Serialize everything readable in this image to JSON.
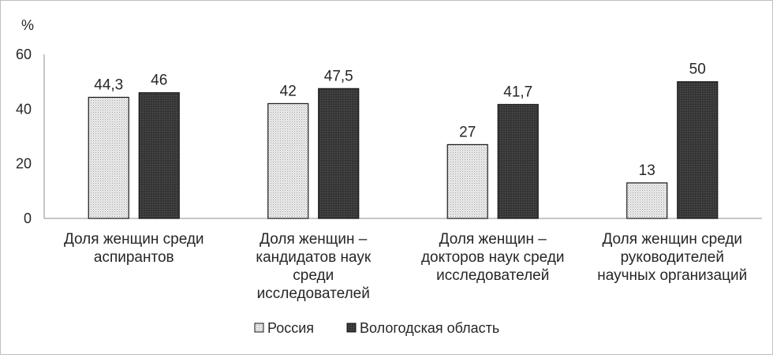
{
  "chart_data": {
    "type": "bar",
    "ylabel": "%",
    "ylim": [
      0,
      60
    ],
    "yticks": [
      0,
      20,
      40,
      60
    ],
    "grid": false,
    "legend_position": "bottom",
    "categories": [
      [
        "Доля женщин  среди",
        "аспирантов"
      ],
      [
        "Доля женщин –",
        "кандидатов наук",
        "среди",
        "исследователей"
      ],
      [
        "Доля женщин –",
        "докторов наук среди",
        "исследователей"
      ],
      [
        "Доля женщин  среди",
        "руководителей",
        "научных  организаций"
      ]
    ],
    "series": [
      {
        "name": "Россия",
        "values": [
          44.3,
          42,
          27,
          13
        ],
        "labels": [
          "44,3",
          "42",
          "27",
          "13"
        ],
        "color": "#e6e6e6",
        "pattern": "dotted"
      },
      {
        "name": "Вологодская область",
        "values": [
          46,
          47.5,
          41.7,
          50
        ],
        "labels": [
          "46",
          "47,5",
          "41,7",
          "50"
        ],
        "color": "#3a3a3a",
        "pattern": "dark"
      }
    ]
  }
}
